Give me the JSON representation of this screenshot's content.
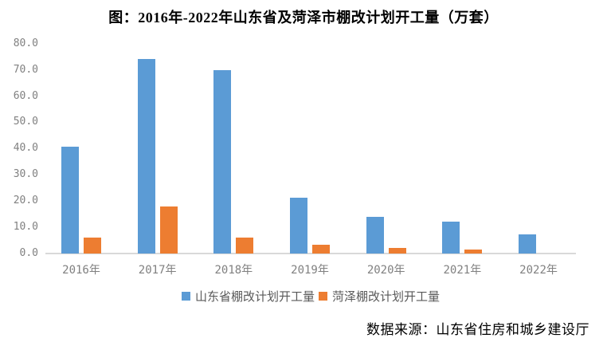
{
  "title": "图：2016年-2022年山东省及菏泽市棚改计划开工量（万套）",
  "source": "数据来源：山东省住房和城乡建设厅",
  "colors": {
    "shandong_bar": "#5B9BD5",
    "heze_bar": "#ED7D31",
    "axis_line": "#d9d9d9",
    "tick_text": "#808080",
    "legend_text": "#595959",
    "title_text": "#000000"
  },
  "chart_data": {
    "type": "bar",
    "title": "图：2016年-2022年山东省及菏泽市棚改计划开工量（万套）",
    "categories": [
      "2016年",
      "2017年",
      "2018年",
      "2019年",
      "2020年",
      "2021年",
      "2022年"
    ],
    "series": [
      {
        "key": "shandong",
        "name": "山东省棚改计划开工量",
        "color": "#5B9BD5",
        "values": [
          40.7,
          74.3,
          69.9,
          21.3,
          13.9,
          12.1,
          7.3
        ]
      },
      {
        "key": "heze",
        "name": "菏泽棚改计划开工量",
        "color": "#ED7D31",
        "values": [
          6.0,
          17.9,
          5.9,
          3.2,
          2.0,
          1.5,
          null
        ]
      }
    ],
    "xlabel": "",
    "ylabel": "",
    "ylim": [
      0,
      80
    ],
    "yticks": [
      "80.0",
      "70.0",
      "60.0",
      "50.0",
      "40.0",
      "30.0",
      "20.0",
      "10.0",
      "0.0"
    ],
    "grid": false,
    "legend_position": "bottom"
  }
}
